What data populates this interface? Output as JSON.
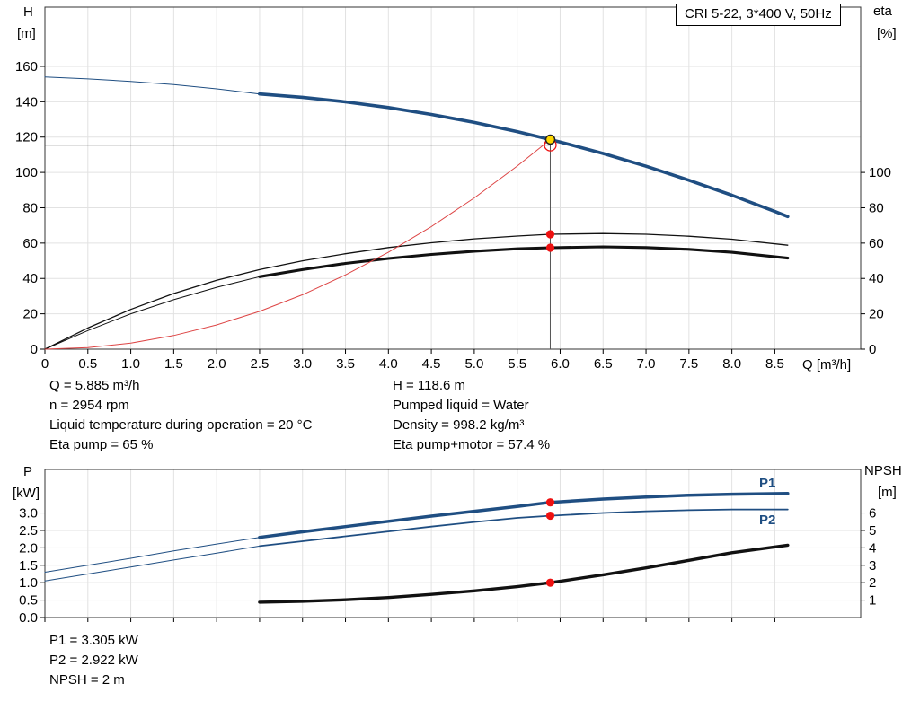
{
  "title_box": {
    "label": "CRI 5-22, 3*400 V, 50Hz"
  },
  "axes": {
    "h": "H",
    "h_unit": "[m]",
    "eta": "eta",
    "eta_unit": "[%]",
    "q": "Q [m³/h]",
    "p": "P",
    "p_unit": "[kW]",
    "npsh": "NPSH",
    "npsh_unit": "[m]"
  },
  "curve_labels": {
    "p1": "P1",
    "p2": "P2"
  },
  "annotations": {
    "top_left": [
      "Q = 5.885 m³/h",
      "n = 2954 rpm",
      "Liquid temperature during operation = 20 °C",
      "Eta pump = 65 %"
    ],
    "top_right": [
      "H = 118.6 m",
      "Pumped liquid = Water",
      "Density = 998.2 kg/m³",
      "Eta pump+motor = 57.4 %"
    ],
    "bottom": [
      "P1 = 3.305 kW",
      "P2 = 2.922 kW",
      "NPSH = 2 m"
    ]
  },
  "colors": {
    "curve_blue": "#1f4e82",
    "curve_black": "#111111",
    "system_red": "#dd4444",
    "marker_red": "#ee1111",
    "marker_yellow": "#ffd800",
    "grid": "#e2e2e2",
    "axis": "#333333"
  },
  "operating_point": {
    "q_m3h": 5.885,
    "h_m": 118.6,
    "eta_pump_pct": 65,
    "eta_pump_motor_pct": 57.4,
    "p1_kw": 3.305,
    "p2_kw": 2.922,
    "npsh_m": 2
  },
  "chart_data": [
    {
      "type": "line",
      "name": "qh-eta-chart",
      "title": "CRI 5-22, 3*400 V, 50Hz",
      "xlabel": "Q [m³/h]",
      "ylabel_left": "H [m]",
      "ylabel_right": "eta [%]",
      "xlim": [
        0,
        9.5
      ],
      "ylim_left": [
        0,
        193.5
      ],
      "ylim_right": [
        0,
        193.5
      ],
      "x_tick_values": [
        0,
        0.5,
        1,
        1.5,
        2,
        2.5,
        3,
        3.5,
        4,
        4.5,
        5,
        5.5,
        6,
        6.5,
        7,
        7.5,
        8,
        8.5
      ],
      "x_tick_labels": [
        "0",
        "0.5",
        "1.0",
        "1.5",
        "2.0",
        "2.5",
        "3.0",
        "3.5",
        "4.0",
        "4.5",
        "5.0",
        "5.5",
        "6.0",
        "6.5",
        "7.0",
        "7.5",
        "8.0",
        "8.5"
      ],
      "y_tick_values_left": [
        0,
        20,
        40,
        60,
        80,
        100,
        120,
        140,
        160
      ],
      "y_tick_labels_left": [
        "0",
        "20",
        "40",
        "60",
        "80",
        "100",
        "120",
        "140",
        "160"
      ],
      "y_tick_values_right": [
        0,
        20,
        40,
        60,
        80,
        100
      ],
      "y_tick_labels_right": [
        "0",
        "20",
        "40",
        "60",
        "80",
        "100"
      ],
      "series": [
        {
          "name": "h-curve-thin",
          "color": "#1f4e82",
          "width": 1,
          "axis": "left",
          "points": [
            [
              0,
              154
            ],
            [
              0.5,
              152.9
            ],
            [
              1,
              151.5
            ],
            [
              1.5,
              149.7
            ],
            [
              2,
              147.3
            ],
            [
              2.5,
              144.4
            ]
          ]
        },
        {
          "name": "h-curve",
          "color": "#1f4e82",
          "width": 3.6,
          "axis": "left",
          "points": [
            [
              2.5,
              144.4
            ],
            [
              3,
              142.5
            ],
            [
              3.5,
              139.9
            ],
            [
              4,
              136.7
            ],
            [
              4.5,
              132.8
            ],
            [
              5,
              128.3
            ],
            [
              5.5,
              123.1
            ],
            [
              5.885,
              118.6
            ],
            [
              6,
              117.2
            ],
            [
              6.5,
              110.7
            ],
            [
              7,
              103.5
            ],
            [
              7.5,
              95.6
            ],
            [
              8,
              87.1
            ],
            [
              8.5,
              77.9
            ],
            [
              8.65,
              75
            ]
          ]
        },
        {
          "name": "eta-pump-curve",
          "color": "#111111",
          "width": 1.3,
          "axis": "right",
          "points": [
            [
              0,
              0
            ],
            [
              0.5,
              12
            ],
            [
              1,
              22.5
            ],
            [
              1.5,
              31.5
            ],
            [
              2,
              39
            ],
            [
              2.5,
              45
            ],
            [
              3,
              50
            ],
            [
              3.5,
              54
            ],
            [
              4,
              57.5
            ],
            [
              4.5,
              60.2
            ],
            [
              5,
              62.4
            ],
            [
              5.5,
              64
            ],
            [
              5.885,
              65
            ],
            [
              6.5,
              65.4
            ],
            [
              7,
              65
            ],
            [
              7.5,
              63.9
            ],
            [
              8,
              62.2
            ],
            [
              8.65,
              58.8
            ]
          ]
        },
        {
          "name": "eta-pump-motor-thin",
          "color": "#111111",
          "width": 1,
          "axis": "right",
          "points": [
            [
              0,
              0
            ],
            [
              0.5,
              10.5
            ],
            [
              1,
              20
            ],
            [
              1.5,
              28
            ],
            [
              2,
              35
            ],
            [
              2.5,
              41
            ]
          ]
        },
        {
          "name": "eta-pump-motor-curve",
          "color": "#111111",
          "width": 3.1,
          "axis": "right",
          "points": [
            [
              2.5,
              41
            ],
            [
              3,
              45
            ],
            [
              3.5,
              48.5
            ],
            [
              4,
              51.3
            ],
            [
              4.5,
              53.6
            ],
            [
              5,
              55.4
            ],
            [
              5.5,
              56.8
            ],
            [
              5.885,
              57.4
            ],
            [
              6.5,
              57.9
            ],
            [
              7,
              57.5
            ],
            [
              7.5,
              56.5
            ],
            [
              8,
              54.8
            ],
            [
              8.65,
              51.5
            ]
          ]
        },
        {
          "name": "system-curve",
          "color": "#dd4444",
          "width": 1,
          "axis": "left",
          "points": [
            [
              0,
              0
            ],
            [
              0.5,
              0.9
            ],
            [
              1,
              3.4
            ],
            [
              1.5,
              7.7
            ],
            [
              2,
              13.7
            ],
            [
              2.5,
              21.4
            ],
            [
              3,
              30.8
            ],
            [
              3.5,
              42
            ],
            [
              4,
              54.8
            ],
            [
              4.5,
              69.3
            ],
            [
              5,
              85.6
            ],
            [
              5.5,
              103.6
            ],
            [
              5.885,
              118.6
            ]
          ]
        }
      ],
      "guides": [
        {
          "type": "v",
          "x": 5.885,
          "y_from": 0,
          "y_to": 118.6,
          "axis": "left",
          "color": "#555555",
          "width": 1
        },
        {
          "type": "h",
          "y": 115.5,
          "x_from": 0,
          "x_to": 5.885,
          "axis": "left",
          "color": "#000000",
          "width": 1
        }
      ],
      "markers": [
        {
          "name": "duty-point-open-circle",
          "x": 5.885,
          "y": 115.5,
          "axis": "left",
          "r": 6.5,
          "fill": "none",
          "stroke": "#ee1111",
          "stroke_width": 1.3
        },
        {
          "name": "duty-point-marker",
          "x": 5.885,
          "y": 118.6,
          "axis": "left",
          "r": 5,
          "fill": "#ffd800",
          "stroke": "#222222",
          "stroke_width": 1.5
        },
        {
          "name": "eta-pump-marker",
          "x": 5.885,
          "y": 65,
          "axis": "right",
          "r": 4.6,
          "fill": "#ee1111"
        },
        {
          "name": "eta-pump-motor-marker",
          "x": 5.885,
          "y": 57.4,
          "axis": "right",
          "r": 4.6,
          "fill": "#ee1111"
        }
      ]
    },
    {
      "type": "line",
      "name": "power-npsh-chart",
      "title": "",
      "xlabel": "",
      "ylabel_left": "P [kW]",
      "ylabel_right": "NPSH [m]",
      "xlim": [
        0,
        9.5
      ],
      "ylim_left": [
        0,
        4.25
      ],
      "ylim_right": [
        0,
        8.5
      ],
      "x_tick_values": [
        0,
        0.5,
        1,
        1.5,
        2,
        2.5,
        3,
        3.5,
        4,
        4.5,
        5,
        5.5,
        6,
        6.5,
        7,
        7.5,
        8,
        8.5
      ],
      "x_tick_labels": [],
      "y_tick_values_left": [
        0,
        0.5,
        1,
        1.5,
        2,
        2.5,
        3
      ],
      "y_tick_labels_left": [
        "0.0",
        "0.5",
        "1.0",
        "1.5",
        "2.0",
        "2.5",
        "3.0"
      ],
      "y_tick_values_right": [
        1,
        2,
        3,
        4,
        5,
        6
      ],
      "y_tick_labels_right": [
        "1",
        "2",
        "3",
        "4",
        "5",
        "6"
      ],
      "series": [
        {
          "name": "p1-lead",
          "color": "#1f4e82",
          "width": 1,
          "axis": "left",
          "points": [
            [
              0,
              1.3
            ],
            [
              0.5,
              1.5
            ],
            [
              1,
              1.7
            ],
            [
              1.5,
              1.91
            ],
            [
              2,
              2.11
            ],
            [
              2.5,
              2.3
            ]
          ]
        },
        {
          "name": "p2-lead",
          "color": "#1f4e82",
          "width": 1,
          "axis": "left",
          "points": [
            [
              0,
              1.05
            ],
            [
              0.5,
              1.25
            ],
            [
              1,
              1.45
            ],
            [
              1.5,
              1.65
            ],
            [
              2,
              1.85
            ],
            [
              2.5,
              2.05
            ]
          ]
        },
        {
          "name": "p1-curve",
          "color": "#1f4e82",
          "width": 3.5,
          "axis": "left",
          "points": [
            [
              2.5,
              2.3
            ],
            [
              3,
              2.46
            ],
            [
              3.5,
              2.61
            ],
            [
              4,
              2.76
            ],
            [
              4.5,
              2.91
            ],
            [
              5,
              3.05
            ],
            [
              5.5,
              3.19
            ],
            [
              5.885,
              3.305
            ],
            [
              6.5,
              3.4
            ],
            [
              7,
              3.46
            ],
            [
              7.5,
              3.51
            ],
            [
              8,
              3.54
            ],
            [
              8.65,
              3.56
            ]
          ]
        },
        {
          "name": "p2-curve",
          "color": "#1f4e82",
          "width": 1.8,
          "axis": "left",
          "points": [
            [
              2.5,
              2.05
            ],
            [
              3,
              2.19
            ],
            [
              3.5,
              2.33
            ],
            [
              4,
              2.47
            ],
            [
              4.5,
              2.61
            ],
            [
              5,
              2.74
            ],
            [
              5.5,
              2.86
            ],
            [
              5.885,
              2.922
            ],
            [
              6.5,
              3.0
            ],
            [
              7,
              3.05
            ],
            [
              7.5,
              3.08
            ],
            [
              8,
              3.1
            ],
            [
              8.65,
              3.1
            ]
          ]
        },
        {
          "name": "npsh-curve",
          "color": "#111111",
          "width": 3.4,
          "axis": "right",
          "points": [
            [
              2.5,
              0.88
            ],
            [
              3,
              0.93
            ],
            [
              3.5,
              1.02
            ],
            [
              4,
              1.15
            ],
            [
              4.5,
              1.33
            ],
            [
              5,
              1.53
            ],
            [
              5.5,
              1.77
            ],
            [
              5.885,
              2.0
            ],
            [
              6.5,
              2.45
            ],
            [
              7,
              2.85
            ],
            [
              7.5,
              3.28
            ],
            [
              8,
              3.72
            ],
            [
              8.65,
              4.15
            ]
          ]
        }
      ],
      "guides": [],
      "markers": [
        {
          "name": "p1-marker",
          "x": 5.885,
          "y": 3.305,
          "axis": "left",
          "r": 4.6,
          "fill": "#ee1111"
        },
        {
          "name": "p2-marker",
          "x": 5.885,
          "y": 2.922,
          "axis": "left",
          "r": 4.6,
          "fill": "#ee1111"
        },
        {
          "name": "npsh-marker",
          "x": 5.885,
          "y": 2.0,
          "axis": "right",
          "r": 4.6,
          "fill": "#ee1111"
        }
      ]
    }
  ]
}
